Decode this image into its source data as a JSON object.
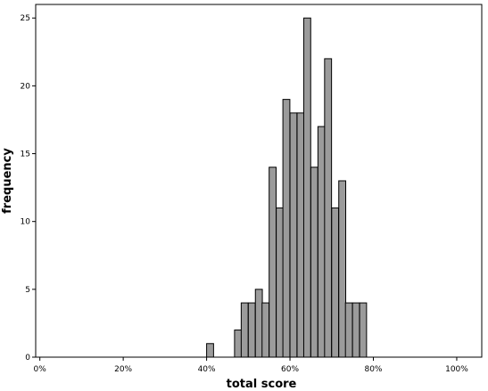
{
  "chart_data": {
    "type": "bar",
    "title": "",
    "xlabel": "total score",
    "ylabel": "frequency",
    "xlim": [
      -0.01,
      1.06
    ],
    "ylim": [
      0,
      26
    ],
    "bin_width": 0.0167,
    "x_ticks": [
      0,
      0.2,
      0.4,
      0.6,
      0.8,
      1.0
    ],
    "x_tick_labels": [
      "0%",
      "20%",
      "40%",
      "60%",
      "80%",
      "100%"
    ],
    "y_ticks": [
      0,
      5,
      10,
      15,
      20,
      25
    ],
    "y_tick_labels": [
      "0",
      "5",
      "10",
      "15",
      "20",
      "25"
    ],
    "bins": [
      {
        "start": 0.4,
        "count": 1
      },
      {
        "start": 0.467,
        "count": 2
      },
      {
        "start": 0.483,
        "count": 4
      },
      {
        "start": 0.5,
        "count": 4
      },
      {
        "start": 0.517,
        "count": 5
      },
      {
        "start": 0.533,
        "count": 4
      },
      {
        "start": 0.55,
        "count": 14
      },
      {
        "start": 0.567,
        "count": 11
      },
      {
        "start": 0.583,
        "count": 19
      },
      {
        "start": 0.6,
        "count": 18
      },
      {
        "start": 0.617,
        "count": 18
      },
      {
        "start": 0.633,
        "count": 25
      },
      {
        "start": 0.65,
        "count": 14
      },
      {
        "start": 0.667,
        "count": 17
      },
      {
        "start": 0.683,
        "count": 22
      },
      {
        "start": 0.7,
        "count": 11
      },
      {
        "start": 0.717,
        "count": 13
      },
      {
        "start": 0.733,
        "count": 4
      },
      {
        "start": 0.75,
        "count": 4
      },
      {
        "start": 0.767,
        "count": 4
      }
    ],
    "bar_color": "#9b9b9b",
    "bar_edge_color": "#000000",
    "grid": false,
    "legend": "none"
  }
}
